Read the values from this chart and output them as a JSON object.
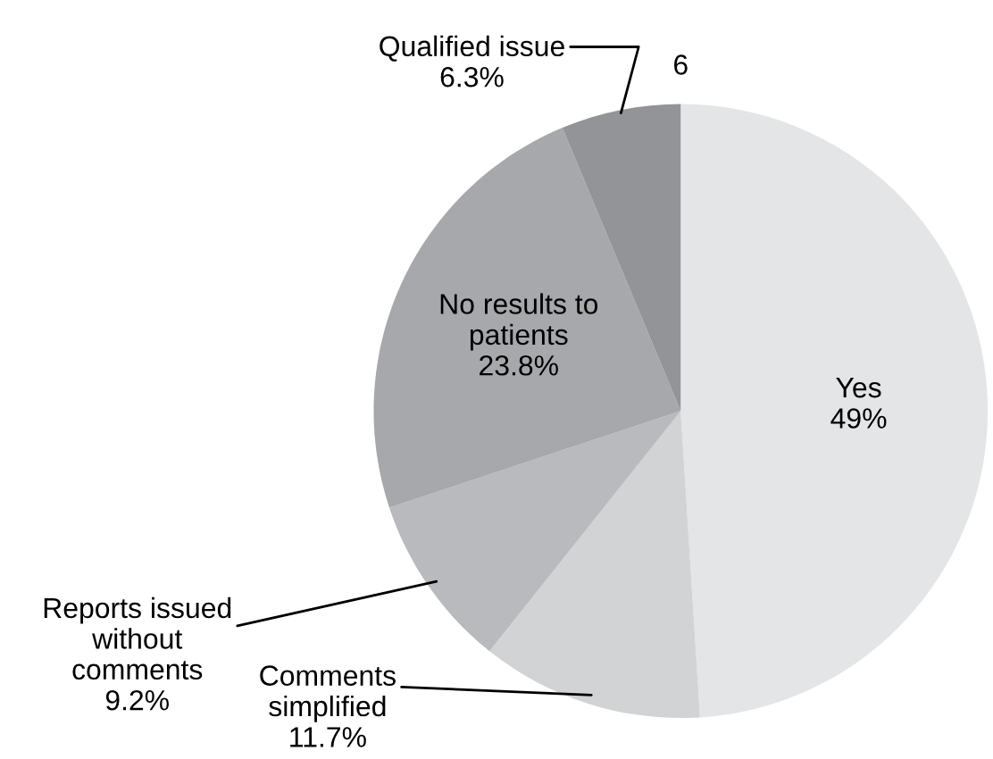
{
  "chart_data": {
    "type": "pie",
    "categories": [
      "Yes",
      "Comments\nsimplified",
      "Reports issued\nwithout\ncomments",
      "No results to\npatients",
      "Qualified issue"
    ],
    "values": [
      49,
      11.7,
      9.2,
      23.8,
      6.3
    ],
    "value_labels": [
      "49%",
      "11.7%",
      "9.2%",
      "23.8%",
      "6.3%"
    ],
    "colors": [
      "#e4e5e7",
      "#d2d3d5",
      "#b9babd",
      "#a7a8ab",
      "#939497"
    ],
    "annotations": [
      "6"
    ]
  }
}
